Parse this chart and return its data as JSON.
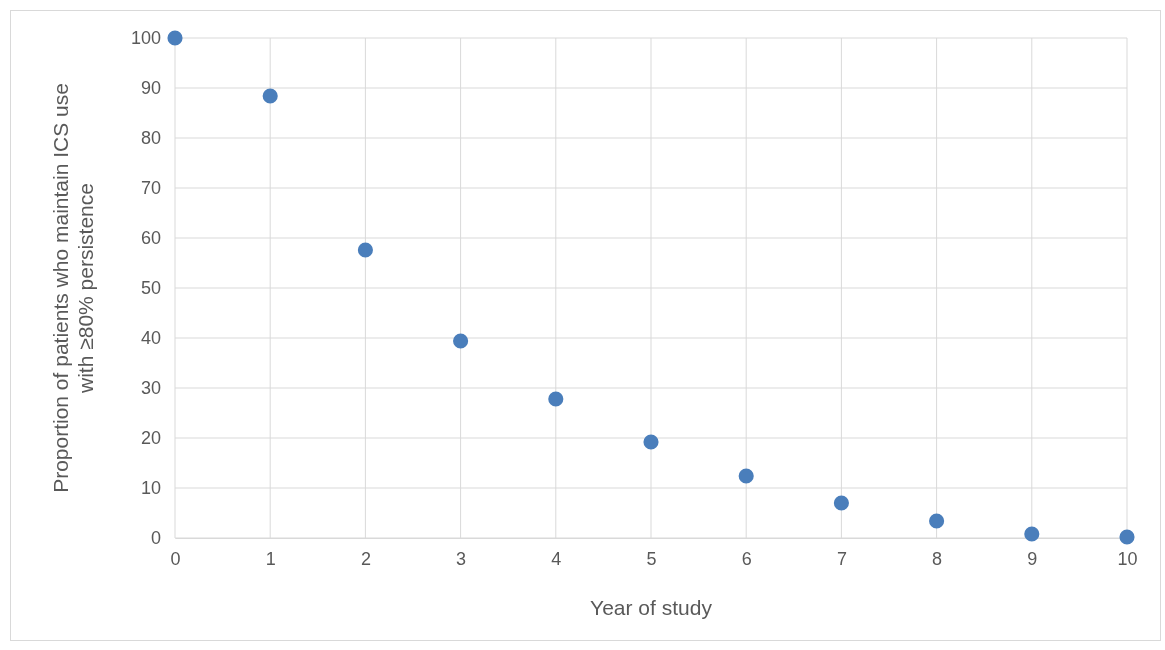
{
  "chart_data": {
    "type": "scatter",
    "xlabel": "Year of study",
    "ylabel": "Proportion of patients who maintain ICS use with ≥80% persistence",
    "x": [
      0,
      1,
      2,
      3,
      4,
      5,
      6,
      7,
      8,
      9,
      10
    ],
    "series": [
      {
        "color": "#4a7ebb",
        "values": [
          100,
          88.4,
          57.6,
          39.4,
          27.8,
          19.2,
          12.4,
          7,
          3.4,
          0.8,
          0.2
        ]
      }
    ],
    "xlim": [
      0,
      10
    ],
    "xticks": [
      0,
      1,
      2,
      3,
      4,
      5,
      6,
      7,
      8,
      9,
      10
    ],
    "ylim": [
      0,
      100
    ],
    "yticks": [
      0,
      10,
      20,
      30,
      40,
      50,
      60,
      70,
      80,
      90,
      100
    ],
    "grid": true,
    "marker": "circle"
  }
}
